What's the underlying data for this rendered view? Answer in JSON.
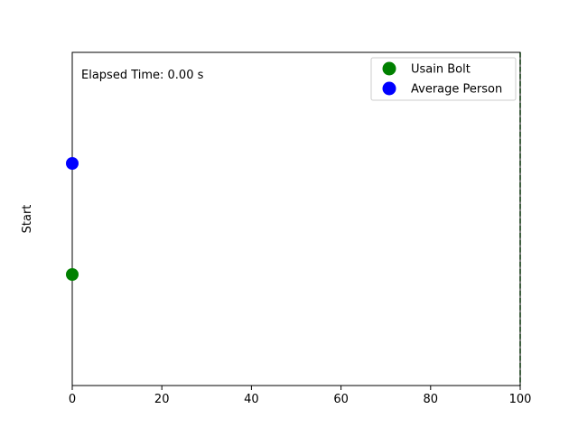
{
  "chart_data": {
    "type": "scatter",
    "title": "",
    "xlabel": "",
    "ylabel": "Start",
    "xlim": [
      0,
      100
    ],
    "ylim": [
      0,
      3
    ],
    "xticks": [
      0,
      20,
      40,
      60,
      80,
      100
    ],
    "xtick_labels": [
      "0",
      "20",
      "40",
      "60",
      "80",
      "100"
    ],
    "grid": false,
    "legend_position": "top-right",
    "annotation": "Elapsed Time: 0.00 s",
    "finish_line_x": 100,
    "finish_line_color": "#008000",
    "series": [
      {
        "name": "Usain Bolt",
        "color": "#008000",
        "x": 0,
        "y": 1
      },
      {
        "name": "Average Person",
        "color": "#0000ff",
        "x": 0,
        "y": 2
      }
    ]
  }
}
